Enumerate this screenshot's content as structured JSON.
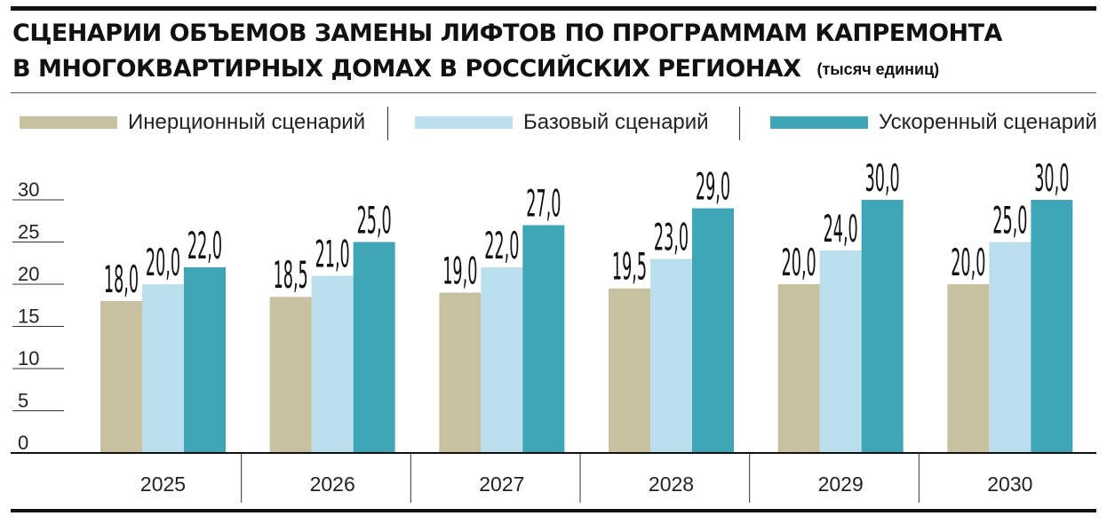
{
  "header": {
    "title_line1": "СЦЕНАРИИ ОБЪЕМОВ ЗАМЕНЫ ЛИФТОВ ПО ПРОГРАММАМ КАПРЕМОНТА",
    "title_line2": "В МНОГОКВАРТИРНЫХ ДОМАХ В РОССИЙСКИХ РЕГИОНАХ",
    "unit": "(тысяч единиц)"
  },
  "colors": {
    "inertial": "#c8c1a0",
    "base": "#bcdfee",
    "accelerated": "#3fa6b8",
    "text": "#111111"
  },
  "chart_data": {
    "type": "bar",
    "title": "СЦЕНАРИИ ОБЪЕМОВ ЗАМЕНЫ ЛИФТОВ ПО ПРОГРАММАМ КАПРЕМОНТА В МНОГОКВАРТИРНЫХ ДОМАХ В РОССИЙСКИХ РЕГИОНАХ",
    "unit": "(тысяч единиц)",
    "categories": [
      "2025",
      "2026",
      "2027",
      "2028",
      "2029",
      "2030"
    ],
    "series": [
      {
        "name": "Инерционный сценарий",
        "values": [
          18.0,
          18.5,
          19.0,
          19.5,
          20.0,
          20.0
        ],
        "labels": [
          "18,0",
          "18,5",
          "19,0",
          "19,5",
          "20,0",
          "20,0"
        ]
      },
      {
        "name": "Базовый сценарий",
        "values": [
          20.0,
          21.0,
          22.0,
          23.0,
          24.0,
          25.0
        ],
        "labels": [
          "20,0",
          "21,0",
          "22,0",
          "23,0",
          "24,0",
          "25,0"
        ]
      },
      {
        "name": "Ускоренный сценарий",
        "values": [
          22.0,
          25.0,
          27.0,
          29.0,
          30.0,
          30.0
        ],
        "labels": [
          "22,0",
          "25,0",
          "27,0",
          "29,0",
          "30,0",
          "30,0"
        ]
      }
    ],
    "yticks": [
      "0",
      "5",
      "10",
      "15",
      "20",
      "25",
      "30"
    ],
    "ylim": [
      0,
      30
    ],
    "legend": "top",
    "grid": false
  }
}
